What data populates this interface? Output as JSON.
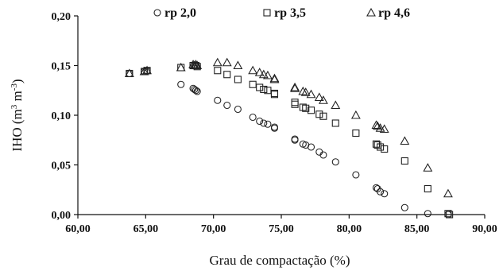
{
  "chart_data": {
    "type": "scatter",
    "xlabel": "Grau de compactação (%)",
    "ylabel": "IHO (m³ m⁻³)",
    "ylabel_parts": {
      "base": "IHO (m",
      "exp1": "3",
      "mid": " m",
      "exp2": "-3",
      "end": ")"
    },
    "xlim": [
      60,
      90
    ],
    "ylim": [
      0,
      0.2
    ],
    "x_ticks": [
      "60,00",
      "65,00",
      "70,00",
      "75,00",
      "80,00",
      "85,00",
      "90,00"
    ],
    "y_ticks": [
      "0,00",
      "0,05",
      "0,10",
      "0,15",
      "0,20"
    ],
    "grid": false,
    "legend_position": "top",
    "series": [
      {
        "name": "rp 2,0",
        "marker": "circle",
        "points": [
          [
            63.8,
            0.142
          ],
          [
            64.9,
            0.144
          ],
          [
            65.1,
            0.145
          ],
          [
            67.6,
            0.131
          ],
          [
            68.5,
            0.127
          ],
          [
            68.6,
            0.126
          ],
          [
            68.7,
            0.125
          ],
          [
            68.8,
            0.124
          ],
          [
            70.3,
            0.115
          ],
          [
            71.0,
            0.11
          ],
          [
            71.8,
            0.106
          ],
          [
            72.9,
            0.098
          ],
          [
            73.4,
            0.094
          ],
          [
            73.7,
            0.092
          ],
          [
            74.0,
            0.091
          ],
          [
            74.5,
            0.088
          ],
          [
            74.5,
            0.087
          ],
          [
            76.0,
            0.076
          ],
          [
            76.0,
            0.075
          ],
          [
            76.6,
            0.071
          ],
          [
            76.8,
            0.07
          ],
          [
            77.2,
            0.068
          ],
          [
            77.8,
            0.063
          ],
          [
            78.1,
            0.06
          ],
          [
            79.0,
            0.053
          ],
          [
            80.5,
            0.04
          ],
          [
            82.0,
            0.027
          ],
          [
            82.1,
            0.026
          ],
          [
            82.3,
            0.023
          ],
          [
            82.6,
            0.021
          ],
          [
            84.1,
            0.007
          ],
          [
            85.8,
            0.001
          ],
          [
            87.3,
            0.0
          ]
        ]
      },
      {
        "name": "rp 3,5",
        "marker": "square",
        "points": [
          [
            63.8,
            0.142
          ],
          [
            64.9,
            0.144
          ],
          [
            65.1,
            0.145
          ],
          [
            67.6,
            0.148
          ],
          [
            68.5,
            0.15
          ],
          [
            68.6,
            0.15
          ],
          [
            68.7,
            0.15
          ],
          [
            68.8,
            0.149
          ],
          [
            70.3,
            0.145
          ],
          [
            71.0,
            0.141
          ],
          [
            71.8,
            0.136
          ],
          [
            72.9,
            0.131
          ],
          [
            73.4,
            0.128
          ],
          [
            73.7,
            0.126
          ],
          [
            74.0,
            0.125
          ],
          [
            74.5,
            0.122
          ],
          [
            74.5,
            0.121
          ],
          [
            76.0,
            0.113
          ],
          [
            76.0,
            0.111
          ],
          [
            76.6,
            0.108
          ],
          [
            76.8,
            0.107
          ],
          [
            77.2,
            0.105
          ],
          [
            77.8,
            0.101
          ],
          [
            78.1,
            0.099
          ],
          [
            79.0,
            0.092
          ],
          [
            80.5,
            0.082
          ],
          [
            82.0,
            0.071
          ],
          [
            82.1,
            0.07
          ],
          [
            82.3,
            0.068
          ],
          [
            82.6,
            0.066
          ],
          [
            84.1,
            0.054
          ],
          [
            85.8,
            0.026
          ],
          [
            87.3,
            0.001
          ],
          [
            87.4,
            0.0
          ]
        ]
      },
      {
        "name": "rp 4,6",
        "marker": "triangle",
        "points": [
          [
            63.8,
            0.142
          ],
          [
            64.9,
            0.144
          ],
          [
            65.1,
            0.145
          ],
          [
            67.6,
            0.148
          ],
          [
            68.5,
            0.151
          ],
          [
            68.6,
            0.15
          ],
          [
            68.7,
            0.151
          ],
          [
            68.8,
            0.15
          ],
          [
            70.3,
            0.153
          ],
          [
            71.0,
            0.153
          ],
          [
            71.8,
            0.15
          ],
          [
            72.9,
            0.145
          ],
          [
            73.4,
            0.143
          ],
          [
            73.7,
            0.141
          ],
          [
            74.0,
            0.14
          ],
          [
            74.5,
            0.137
          ],
          [
            74.5,
            0.136
          ],
          [
            76.0,
            0.128
          ],
          [
            76.0,
            0.127
          ],
          [
            76.6,
            0.124
          ],
          [
            76.8,
            0.123
          ],
          [
            77.2,
            0.121
          ],
          [
            77.8,
            0.118
          ],
          [
            78.1,
            0.115
          ],
          [
            79.0,
            0.11
          ],
          [
            80.5,
            0.1
          ],
          [
            82.0,
            0.09
          ],
          [
            82.1,
            0.089
          ],
          [
            82.3,
            0.087
          ],
          [
            82.6,
            0.086
          ],
          [
            84.1,
            0.074
          ],
          [
            85.8,
            0.047
          ],
          [
            87.3,
            0.021
          ]
        ]
      }
    ]
  }
}
